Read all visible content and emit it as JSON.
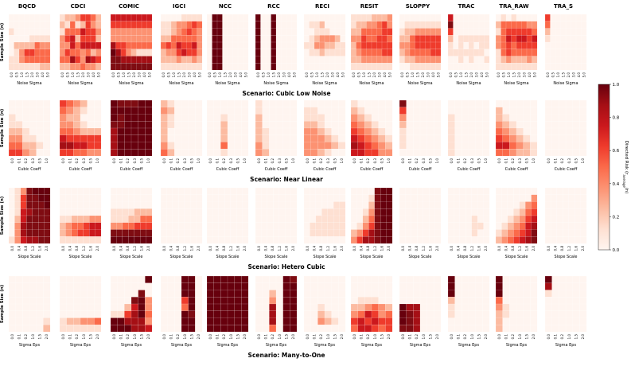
{
  "chart_data": {
    "type": "heatmap",
    "colorbar": {
      "label": "Directed Risk (r",
      "label_sub": "average",
      "label_tail": "/n)",
      "ticks": [
        "0.0",
        "0.2",
        "0.4",
        "0.6",
        "0.8",
        "1.0"
      ],
      "range": [
        0,
        1
      ],
      "colormap": "Reds"
    },
    "methods": [
      "BQCD",
      "CDCI",
      "COMIC",
      "IGCI",
      "NCC",
      "RCC",
      "RECI",
      "RESIT",
      "SLOPPY",
      "TRAC",
      "TRA_RAW",
      "TRA_S"
    ],
    "ylabel": "Sample Size (n)",
    "panels": [
      {
        "xlabel": "Noise Sigma",
        "ticks": [
          "0.0",
          "0.5",
          "1.0",
          "1.5",
          "2.0",
          "3.0",
          "4.0",
          "5.0"
        ],
        "title_below": "Scenario: Cubic Low Noise",
        "grids": [
          [
            "00000000",
            "00000000",
            "10000000",
            "00001111",
            "02222433",
            "01355444",
            "11344444",
            "11111122"
          ],
          [
            "12235542",
            "21412532",
            "14446553",
            "35625552",
            "33646666",
            "35443423",
            "44753765",
            "22334332"
          ],
          [
            "66666666",
            "55555555",
            "33333333",
            "33333333",
            "75544444",
            "97532111",
            "88777777",
            "88888888"
          ],
          [
            "00001111",
            "11233454",
            "11234543",
            "22444443",
            "45465563",
            "23356553",
            "22232232",
            "11111111"
          ],
          [
            "09900000",
            "09900000",
            "09900000",
            "09900000",
            "09900000",
            "09900000",
            "09900000",
            "09900000"
          ],
          [
            "90090000",
            "90090000",
            "90090000",
            "90090000",
            "90090000",
            "90090000",
            "90090000",
            "90090000"
          ],
          [
            "00000000",
            "01120000",
            "00111000",
            "01233320",
            "11332211",
            "01121111",
            "00000000",
            "00000000"
          ],
          [
            "11112223",
            "12233453",
            "22444455",
            "33544554",
            "24555555",
            "23444455",
            "22333333",
            "11111111"
          ],
          [
            "00000000",
            "01111111",
            "12233333",
            "22455555",
            "33455555",
            "23444455",
            "12233333",
            "00111111"
          ],
          [
            "60000000",
            "80000000",
            "50000000",
            "20111111",
            "10101011",
            "11111110",
            "00101001",
            "00000000"
          ],
          [
            "01010000",
            "24444433",
            "14555554",
            "34656656",
            "34545555",
            "14544444",
            "12322232",
            "11111111"
          ],
          [
            "50000000",
            "40000000",
            "20000000",
            "10000000",
            "00000000",
            "00000000",
            "00000000",
            "00000000"
          ]
        ]
      },
      {
        "xlabel": "Cubic Coeff",
        "ticks": [
          "0.0",
          "0.1",
          "0.2",
          "0.3",
          "0.5",
          "1.0"
        ],
        "title_below": "Scenario: Near Linear",
        "grids": [
          [
            "000000",
            "000000",
            "100000",
            "110000",
            "221000",
            "331100",
            "442210",
            "553200"
          ],
          [
            "543200",
            "432100",
            "322000",
            "332100",
            "443222",
            "655555",
            "776655",
            "554433"
          ],
          [
            "988899",
            "999999",
            "989999",
            "889999",
            "799999",
            "799999",
            "799999",
            "799999"
          ],
          [
            "210000",
            "320000",
            "210000",
            "210000",
            "200000",
            "200000",
            "310000",
            "420000"
          ],
          [
            "000000",
            "000000",
            "001000",
            "002000",
            "002000",
            "002000",
            "004000",
            "001000"
          ],
          [
            "100000",
            "100000",
            "200000",
            "200000",
            "210000",
            "210000",
            "310000",
            "320000"
          ],
          [
            "000000",
            "110000",
            "111000",
            "221000",
            "332100",
            "333210",
            "333321",
            "332100"
          ],
          [
            "100000",
            "210000",
            "321000",
            "432100",
            "543210",
            "654321",
            "765432",
            "665533"
          ],
          [
            "800000",
            "500000",
            "300000",
            "200000",
            "100000",
            "100000",
            "100000",
            "000000"
          ],
          [
            "000000",
            "000000",
            "100000",
            "100000",
            "100000",
            "100000",
            "100000",
            "100000"
          ],
          [
            "000000",
            "200000",
            "210000",
            "321000",
            "432100",
            "543210",
            "664321",
            "443221"
          ],
          [
            "000000",
            "000000",
            "000000",
            "000000",
            "000000",
            "000000",
            "000000",
            "000000"
          ]
        ]
      },
      {
        "xlabel": "Slope Scale",
        "ticks": [
          "0.0",
          "0.4",
          "0.8",
          "1.2",
          "1.6",
          "2.0"
        ],
        "title_below": "Scenario: Hetero Cubic",
        "grids": [
          [
            "0138999",
            "0158899",
            "0158889",
            "0167888",
            "0268888",
            "0378888",
            "0378888",
            "1367788"
          ],
          [
            "0000000",
            "0000000",
            "0000000",
            "0000000",
            "1122233",
            "2344566",
            "2345566",
            "1111111"
          ],
          [
            "0000000",
            "0000000",
            "0000000",
            "1111222",
            "1112244",
            "3344555",
            "8888888",
            "9999999"
          ],
          [
            "0000000",
            "0000000",
            "0000000",
            "0000000",
            "0000000",
            "0000000",
            "0000000",
            "0000000"
          ],
          [
            "0000000",
            "0000000",
            "0000000",
            "0000000",
            "0000000",
            "0000000",
            "0000000",
            "0000000"
          ],
          [
            "0000000",
            "0000000",
            "0000000",
            "0000000",
            "0000000",
            "0000000",
            "0000000",
            "0000000"
          ],
          [
            "0000000",
            "0000000",
            "0000011",
            "0001111",
            "0011111",
            "0111111",
            "0111111",
            "0000000"
          ],
          [
            "0000899",
            "0001899",
            "0002899",
            "0013899",
            "0024899",
            "0135899",
            "2357899",
            "3577899"
          ],
          [
            "0000000",
            "0000000",
            "0000000",
            "0000000",
            "0000000",
            "0000000",
            "0000000",
            "0000000"
          ],
          [
            "0000000",
            "0000000",
            "0000000",
            "0000000",
            "0000100",
            "0000110",
            "0000100",
            "0000000"
          ],
          [
            "0000000",
            "0000003",
            "0000134",
            "0001245",
            "0012356",
            "0123467",
            "1234568",
            "2345678"
          ],
          [
            "0000000",
            "0000000",
            "0000000",
            "0000000",
            "0000000",
            "0000000",
            "0000000",
            "0000000"
          ]
        ]
      },
      {
        "xlabel": "Sigma Eps",
        "ticks": [
          "0.0",
          "0.1",
          "0.2",
          "1.0",
          "1.5",
          "2.0"
        ],
        "title_below": "Scenario: Many-to-One",
        "grids": [
          [
            "000000",
            "000000",
            "000000",
            "000000",
            "000000",
            "000000",
            "000001",
            "000002"
          ],
          [
            "000000",
            "000000",
            "000000",
            "000000",
            "000000",
            "000000",
            "122334",
            "111111"
          ],
          [
            "000009",
            "000000",
            "000080",
            "000893",
            "002693",
            "115794",
            "997773",
            "999776"
          ],
          [
            "000990",
            "000990",
            "000990",
            "000590",
            "000490",
            "000980",
            "000990",
            "000990"
          ],
          [
            "999999",
            "999999",
            "999999",
            "999999",
            "999999",
            "999999",
            "999999",
            "999999"
          ],
          [
            "000098",
            "000099",
            "002099",
            "003099",
            "007099",
            "007099",
            "007099",
            "004099"
          ],
          [
            "000000",
            "000000",
            "000000",
            "000000",
            "001000",
            "002100",
            "003210",
            "000000"
          ],
          [
            "000000",
            "000000",
            "000000",
            "011100",
            "223432",
            "346534",
            "565655",
            "466545"
          ],
          [
            "000000",
            "000000",
            "000000",
            "000000",
            "977000",
            "987000",
            "987000",
            "887000"
          ],
          [
            "900000",
            "900000",
            "900000",
            "200000",
            "100000",
            "100000",
            "000000",
            "000000"
          ],
          [
            "900000",
            "900000",
            "900000",
            "400000",
            "310000",
            "210000",
            "200000",
            "200000"
          ],
          [
            "900000",
            "700000",
            "100000",
            "000000",
            "000000",
            "000000",
            "000000",
            "000000"
          ]
        ]
      }
    ]
  }
}
